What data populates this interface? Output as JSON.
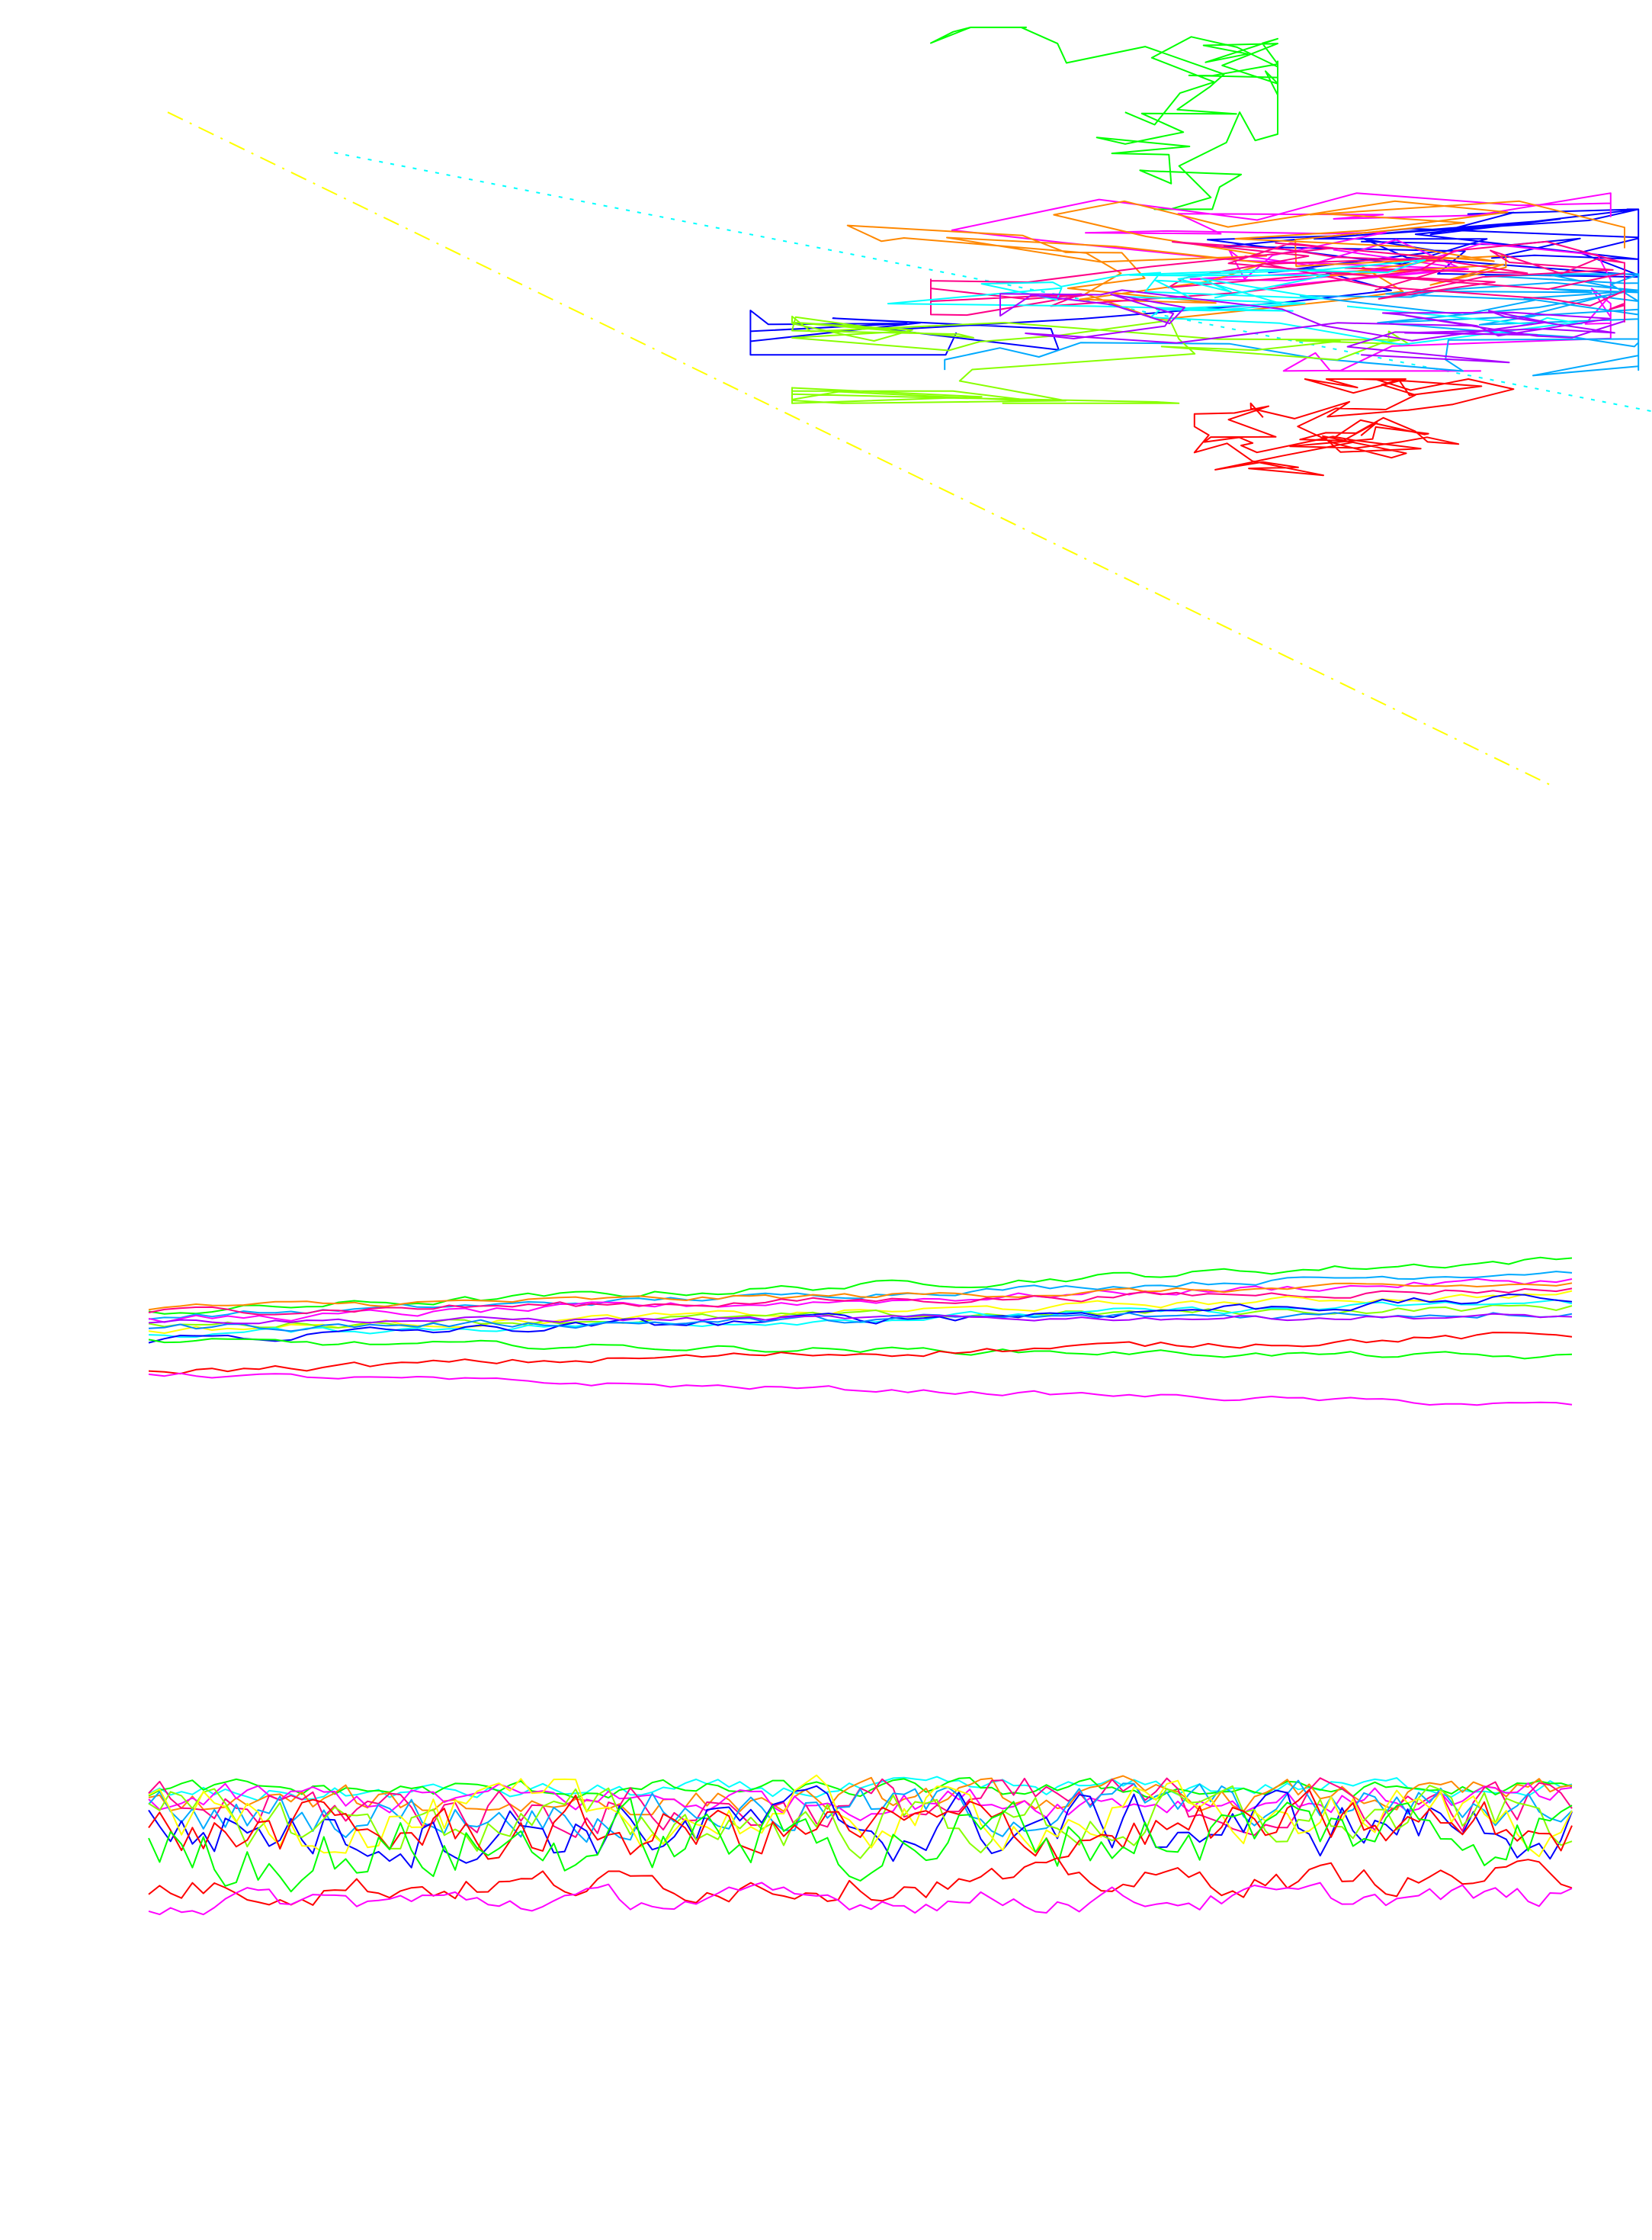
{
  "palette": [
    "#ff0000",
    "#ff00ff",
    "#0000ff",
    "#00aaff",
    "#00ffff",
    "#00ff00",
    "#88ff00",
    "#ffff00",
    "#ff8800",
    "#ff0088",
    "#aa00ff",
    "#0088ff"
  ],
  "chart_data": [
    {
      "type": "line",
      "title": "",
      "xlabel": "",
      "ylabel": "",
      "grid": false,
      "legend": "none",
      "xlim": [
        0,
        1
      ],
      "ylim": [
        0,
        1
      ],
      "fits": [
        {
          "style": "dash-dot",
          "color": "#ffff00",
          "x": [
            0.0,
            1.0
          ],
          "y": [
            0.88,
            0.045
          ]
        },
        {
          "style": "dotted",
          "color": "#00ffff",
          "x": [
            0.12,
            1.07
          ],
          "y": [
            0.83,
            0.51
          ]
        }
      ],
      "clusters": [
        {
          "color": "#00ff00",
          "cx": 0.69,
          "cy": 0.88,
          "x_range": [
            0.55,
            0.8
          ],
          "y_range": [
            0.76,
            0.985
          ],
          "n": 60
        },
        {
          "color": "#ff0000",
          "cx": 0.86,
          "cy": 0.48,
          "x_range": [
            0.74,
            0.97
          ],
          "y_range": [
            0.42,
            0.55
          ],
          "n": 80
        },
        {
          "color": "#0000ff",
          "cx": 0.86,
          "cy": 0.72,
          "x_range": [
            0.42,
            1.06
          ],
          "y_range": [
            0.58,
            0.76
          ],
          "n": 60
        },
        {
          "color": "#ff00ff",
          "cx": 0.84,
          "cy": 0.71,
          "x_range": [
            0.46,
            1.04
          ],
          "y_range": [
            0.56,
            0.78
          ],
          "n": 50
        },
        {
          "color": "#ff8800",
          "cx": 0.86,
          "cy": 0.69,
          "x_range": [
            0.49,
            1.05
          ],
          "y_range": [
            0.58,
            0.77
          ],
          "n": 50
        },
        {
          "color": "#00aaff",
          "cx": 0.88,
          "cy": 0.62,
          "x_range": [
            0.56,
            1.06
          ],
          "y_range": [
            0.53,
            0.68
          ],
          "n": 60
        },
        {
          "color": "#88ff00",
          "cx": 0.88,
          "cy": 0.6,
          "x_range": [
            0.45,
            1.05
          ],
          "y_range": [
            0.52,
            0.66
          ],
          "n": 50
        },
        {
          "color": "#ff0088",
          "cx": 0.87,
          "cy": 0.66,
          "x_range": [
            0.55,
            1.05
          ],
          "y_range": [
            0.55,
            0.72
          ],
          "n": 60
        },
        {
          "color": "#00ffff",
          "cx": 0.85,
          "cy": 0.64,
          "x_range": [
            0.5,
            1.05
          ],
          "y_range": [
            0.56,
            0.72
          ],
          "n": 40
        },
        {
          "color": "#aa00ff",
          "cx": 0.86,
          "cy": 0.58,
          "x_range": [
            0.6,
            1.05
          ],
          "y_range": [
            0.5,
            0.66
          ],
          "n": 40
        }
      ]
    },
    {
      "type": "line",
      "title": "",
      "xlabel": "",
      "ylabel": "",
      "grid": false,
      "legend": "none",
      "x": [
        0,
        100
      ],
      "ylim": [
        0,
        1
      ],
      "series": [
        {
          "color": "#00ff00",
          "start": 0.7,
          "end": 0.93,
          "noise": 0.015
        },
        {
          "color": "#00aaff",
          "start": 0.68,
          "end": 0.88,
          "noise": 0.012
        },
        {
          "color": "#ff00ff",
          "start": 0.66,
          "end": 0.84,
          "noise": 0.015
        },
        {
          "color": "#ff8800",
          "start": 0.72,
          "end": 0.82,
          "noise": 0.012
        },
        {
          "color": "#ff0088",
          "start": 0.7,
          "end": 0.8,
          "noise": 0.014
        },
        {
          "color": "#ffff00",
          "start": 0.62,
          "end": 0.78,
          "noise": 0.014
        },
        {
          "color": "#88ff00",
          "start": 0.64,
          "end": 0.72,
          "noise": 0.015
        },
        {
          "color": "#00ffff",
          "start": 0.6,
          "end": 0.74,
          "noise": 0.014
        },
        {
          "color": "#0000ff",
          "start": 0.58,
          "end": 0.76,
          "noise": 0.02
        },
        {
          "color": "#0088ff",
          "start": 0.63,
          "end": 0.7,
          "noise": 0.015
        },
        {
          "color": "#aa00ff",
          "start": 0.66,
          "end": 0.68,
          "noise": 0.01
        },
        {
          "color": "#00ff00",
          "start": 0.57,
          "end": 0.5,
          "noise": 0.012
        },
        {
          "color": "#ff0000",
          "start": 0.44,
          "end": 0.6,
          "noise": 0.014
        },
        {
          "color": "#ff00ff",
          "start": 0.43,
          "end": 0.29,
          "noise": 0.01
        }
      ]
    },
    {
      "type": "line",
      "title": "",
      "xlabel": "",
      "ylabel": "",
      "grid": false,
      "legend": "none",
      "x": [
        0,
        100
      ],
      "ylim": [
        0,
        1
      ],
      "series": [
        {
          "color": "#00ffff",
          "start": 0.74,
          "end": 0.78,
          "noise": 0.03
        },
        {
          "color": "#00ff00",
          "start": 0.76,
          "end": 0.76,
          "noise": 0.03
        },
        {
          "color": "#ff8800",
          "start": 0.7,
          "end": 0.74,
          "noise": 0.05
        },
        {
          "color": "#ff00ff",
          "start": 0.72,
          "end": 0.72,
          "noise": 0.05
        },
        {
          "color": "#ff0088",
          "start": 0.68,
          "end": 0.7,
          "noise": 0.09
        },
        {
          "color": "#00aaff",
          "start": 0.66,
          "end": 0.7,
          "noise": 0.08
        },
        {
          "color": "#0000ff",
          "start": 0.6,
          "end": 0.62,
          "noise": 0.11
        },
        {
          "color": "#88ff00",
          "start": 0.62,
          "end": 0.64,
          "noise": 0.1
        },
        {
          "color": "#ffff00",
          "start": 0.64,
          "end": 0.66,
          "noise": 0.1
        },
        {
          "color": "#ff0000",
          "start": 0.58,
          "end": 0.6,
          "noise": 0.1
        },
        {
          "color": "#00ff00",
          "start": 0.5,
          "end": 0.62,
          "noise": 0.12
        },
        {
          "color": "#ff0000",
          "start": 0.36,
          "end": 0.4,
          "noise": 0.05
        },
        {
          "color": "#ff00ff",
          "start": 0.3,
          "end": 0.32,
          "noise": 0.04
        }
      ]
    }
  ]
}
